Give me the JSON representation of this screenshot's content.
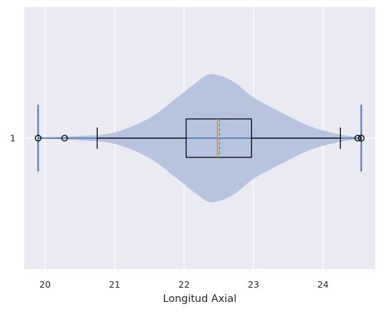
{
  "chart_data": {
    "type": "violin+box (horizontal)",
    "xlabel": "Longitud Axial",
    "y_categories": [
      "1"
    ],
    "xlim": [
      19.7,
      24.75
    ],
    "x_ticks": [
      20,
      21,
      22,
      23,
      24
    ],
    "grid": true,
    "colors": {
      "background": "#EAEAF2",
      "grid": "#FFFFFF",
      "violin_fill": "#B7C4DE",
      "violin_lines": "#4C72B0",
      "box": "#000000",
      "median": "#DD8452",
      "mean": "#55A868"
    },
    "violin": {
      "min": 19.9,
      "max": 24.55,
      "density": [
        [
          19.9,
          0.01
        ],
        [
          20.5,
          0.03
        ],
        [
          21.0,
          0.08
        ],
        [
          21.5,
          0.28
        ],
        [
          21.9,
          0.57
        ],
        [
          22.2,
          0.8
        ],
        [
          22.4,
          0.9
        ],
        [
          22.7,
          0.8
        ],
        [
          23.0,
          0.57
        ],
        [
          23.4,
          0.36
        ],
        [
          23.8,
          0.17
        ],
        [
          24.2,
          0.06
        ],
        [
          24.55,
          0.01
        ]
      ]
    },
    "box": {
      "whisker_low": 20.75,
      "q1": 22.03,
      "median": 22.48,
      "mean": 22.51,
      "q3": 22.97,
      "whisker_high": 24.25,
      "outliers": [
        19.9,
        20.28,
        24.5,
        24.55
      ]
    }
  }
}
